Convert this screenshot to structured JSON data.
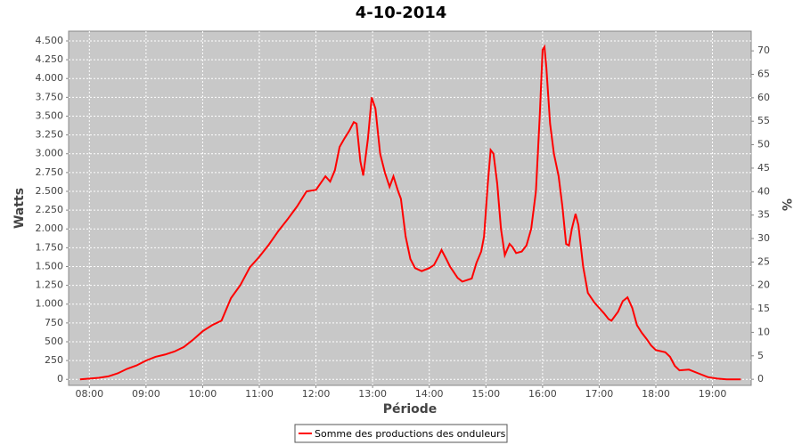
{
  "chart_data": {
    "type": "line",
    "title": "4-10-2014",
    "xlabel": "Période",
    "ylabel": "Watts",
    "y2label": "%",
    "x": [
      "07:50",
      "08:00",
      "08:10",
      "08:20",
      "08:30",
      "08:40",
      "08:50",
      "09:00",
      "09:10",
      "09:20",
      "09:30",
      "09:40",
      "09:50",
      "10:00",
      "10:10",
      "10:20",
      "10:30",
      "10:40",
      "10:50",
      "11:00",
      "11:10",
      "11:20",
      "11:30",
      "11:40",
      "11:50",
      "12:00",
      "12:10",
      "12:15",
      "12:20",
      "12:25",
      "12:30",
      "12:35",
      "12:40",
      "12:43",
      "12:47",
      "12:50",
      "12:55",
      "12:59",
      "13:03",
      "13:08",
      "13:13",
      "13:18",
      "13:22",
      "13:27",
      "13:30",
      "13:35",
      "13:40",
      "13:45",
      "13:52",
      "14:00",
      "14:05",
      "14:10",
      "14:13",
      "14:18",
      "14:22",
      "14:30",
      "14:35",
      "14:45",
      "14:50",
      "14:55",
      "14:58",
      "15:02",
      "15:05",
      "15:08",
      "15:12",
      "15:16",
      "15:20",
      "15:25",
      "15:28",
      "15:32",
      "15:38",
      "15:43",
      "15:48",
      "15:53",
      "15:57",
      "16:00",
      "16:02",
      "16:04",
      "16:08",
      "16:12",
      "16:17",
      "16:21",
      "16:25",
      "16:28",
      "16:31",
      "16:35",
      "16:38",
      "16:43",
      "16:48",
      "16:55",
      "17:00",
      "17:05",
      "17:10",
      "17:13",
      "17:20",
      "17:25",
      "17:30",
      "17:35",
      "17:40",
      "17:45",
      "17:50",
      "17:55",
      "18:00",
      "18:10",
      "18:15",
      "18:20",
      "18:25",
      "18:35",
      "18:45",
      "18:55",
      "19:05",
      "19:15",
      "19:30"
    ],
    "series": [
      {
        "name": "Somme des productions des onduleurs",
        "color": "#ff0000",
        "values": [
          0,
          10,
          20,
          40,
          80,
          140,
          185,
          250,
          300,
          330,
          370,
          430,
          530,
          640,
          720,
          780,
          1080,
          1255,
          1490,
          1630,
          1790,
          1970,
          2130,
          2300,
          2500,
          2520,
          2700,
          2630,
          2780,
          3090,
          3200,
          3300,
          3420,
          3400,
          2900,
          2710,
          3200,
          3750,
          3600,
          3000,
          2750,
          2560,
          2700,
          2500,
          2400,
          1900,
          1600,
          1480,
          1440,
          1480,
          1520,
          1640,
          1720,
          1600,
          1500,
          1350,
          1300,
          1340,
          1550,
          1700,
          1900,
          2600,
          3050,
          3000,
          2600,
          2000,
          1650,
          1800,
          1760,
          1680,
          1700,
          1780,
          2000,
          2500,
          3500,
          4380,
          4420,
          4150,
          3400,
          3000,
          2700,
          2300,
          1800,
          1780,
          2000,
          2200,
          2050,
          1500,
          1150,
          1020,
          950,
          880,
          800,
          780,
          900,
          1040,
          1090,
          950,
          720,
          620,
          540,
          450,
          390,
          360,
          300,
          180,
          120,
          130,
          80,
          30,
          10,
          0,
          0
        ]
      }
    ],
    "xlim": [
      "07:38",
      "19:41"
    ],
    "xticks": [
      "08:00",
      "09:00",
      "10:00",
      "11:00",
      "12:00",
      "13:00",
      "14:00",
      "15:00",
      "16:00",
      "17:00",
      "18:00",
      "19:00"
    ],
    "ylim": [
      -80,
      4630
    ],
    "yticks": [
      0,
      250,
      500,
      750,
      {
        "value": 1000,
        "label": "1.000"
      },
      {
        "value": 1250,
        "label": "1.250"
      },
      {
        "value": 1500,
        "label": "1.500"
      },
      {
        "value": 1750,
        "label": "1.750"
      },
      {
        "value": 2000,
        "label": "2.000"
      },
      {
        "value": 2250,
        "label": "2.250"
      },
      {
        "value": 2500,
        "label": "2.500"
      },
      {
        "value": 2750,
        "label": "2.750"
      },
      {
        "value": 3000,
        "label": "3.000"
      },
      {
        "value": 3250,
        "label": "3.250"
      },
      {
        "value": 3500,
        "label": "3.500"
      },
      {
        "value": 3750,
        "label": "3.750"
      },
      {
        "value": 4000,
        "label": "4.000"
      },
      {
        "value": 4250,
        "label": "4.250"
      },
      {
        "value": 4500,
        "label": "4.500"
      }
    ],
    "y2lim": [
      -1.3,
      74.2
    ],
    "y2ticks": [
      0,
      5,
      10,
      15,
      20,
      25,
      30,
      35,
      40,
      45,
      50,
      55,
      60,
      65,
      70
    ],
    "grid": true
  }
}
